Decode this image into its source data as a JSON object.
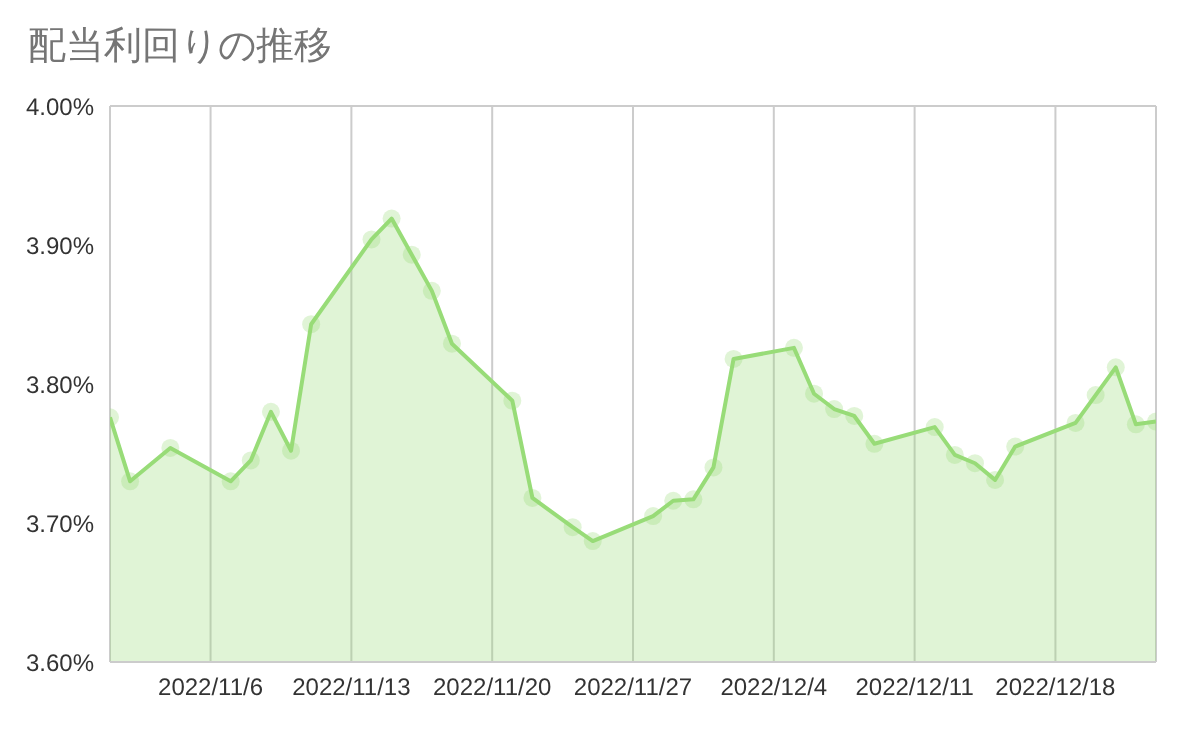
{
  "chart_data": {
    "type": "area",
    "title": "配当利回りの推移",
    "x": [
      "2022-11-01",
      "2022-11-02",
      "2022-11-04",
      "2022-11-07",
      "2022-11-08",
      "2022-11-09",
      "2022-11-10",
      "2022-11-11",
      "2022-11-14",
      "2022-11-15",
      "2022-11-16",
      "2022-11-17",
      "2022-11-18",
      "2022-11-21",
      "2022-11-22",
      "2022-11-24",
      "2022-11-25",
      "2022-11-28",
      "2022-11-29",
      "2022-11-30",
      "2022-12-01",
      "2022-12-02",
      "2022-12-05",
      "2022-12-06",
      "2022-12-07",
      "2022-12-08",
      "2022-12-09",
      "2022-12-12",
      "2022-12-13",
      "2022-12-14",
      "2022-12-15",
      "2022-12-16",
      "2022-12-19",
      "2022-12-20",
      "2022-12-21",
      "2022-12-22",
      "2022-12-23"
    ],
    "series": [
      {
        "color": "#98dc78",
        "values": [
          3.776,
          3.73,
          3.754,
          3.73,
          3.745,
          3.78,
          3.752,
          3.843,
          3.904,
          3.919,
          3.893,
          3.867,
          3.829,
          3.788,
          3.718,
          3.697,
          3.687,
          3.705,
          3.716,
          3.717,
          3.74,
          3.818,
          3.826,
          3.793,
          3.782,
          3.777,
          3.757,
          3.769,
          3.749,
          3.743,
          3.731,
          3.755,
          3.772,
          3.792,
          3.812,
          3.771,
          3.773
        ]
      }
    ],
    "xlim": [
      "2022-11-01",
      "2022-12-23"
    ],
    "xticks": [
      {
        "value": "2022-11-06",
        "label": "2022/11/6"
      },
      {
        "value": "2022-11-13",
        "label": "2022/11/13"
      },
      {
        "value": "2022-11-20",
        "label": "2022/11/20"
      },
      {
        "value": "2022-11-27",
        "label": "2022/11/27"
      },
      {
        "value": "2022-12-04",
        "label": "2022/12/4"
      },
      {
        "value": "2022-12-11",
        "label": "2022/12/11"
      },
      {
        "value": "2022-12-18",
        "label": "2022/12/18"
      }
    ],
    "ylim": [
      3.6,
      4.0
    ],
    "yticks": [
      {
        "value": 3.6,
        "label": "3.60%"
      },
      {
        "value": 3.7,
        "label": "3.70%"
      },
      {
        "value": 3.8,
        "label": "3.80%"
      },
      {
        "value": 3.9,
        "label": "3.90%"
      },
      {
        "value": 4.0,
        "label": "4.00%"
      }
    ],
    "grid": true,
    "marker": "circle",
    "legend": false
  }
}
